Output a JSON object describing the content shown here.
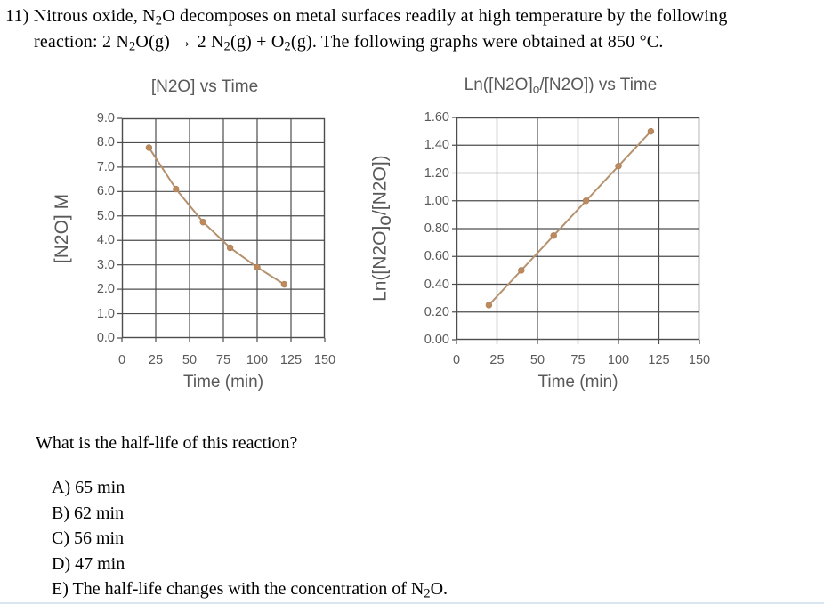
{
  "header": {
    "line1": [
      {
        "t": "11) Nitrous oxide, N"
      },
      {
        "t": "2",
        "sub": true
      },
      {
        "t": "O decomposes on metal surfaces readily at high temperature by the following"
      }
    ],
    "line2": [
      {
        "t": "reaction: 2 N"
      },
      {
        "t": "2",
        "sub": true
      },
      {
        "t": "O(g) →  2 N"
      },
      {
        "t": "2",
        "sub": true
      },
      {
        "t": "(g) + O"
      },
      {
        "t": "2",
        "sub": true
      },
      {
        "t": "(g). The following graphs were obtained at 850 °C."
      }
    ]
  },
  "chart_data": [
    {
      "type": "line",
      "title": "[N2O] vs Time",
      "title_rich": [
        {
          "t": "[N2O] vs Time"
        }
      ],
      "xlabel": "Time (min)",
      "ylabel": "[N2O] M",
      "ylabel_rich": [
        {
          "t": "[N2O] M"
        }
      ],
      "x": [
        20,
        40,
        60,
        80,
        100,
        120
      ],
      "y": [
        7.8,
        6.1,
        4.75,
        3.7,
        2.9,
        2.2
      ],
      "xlim": [
        0,
        150
      ],
      "ylim": [
        0,
        9
      ],
      "xticks": [
        0,
        25,
        50,
        75,
        100,
        125,
        150
      ],
      "ytick_labels": [
        "9.0",
        "8.0",
        "7.0",
        "6.0",
        "5.0",
        "4.0",
        "3.0",
        "2.0",
        "1.0",
        "0.0"
      ],
      "grid": true,
      "legend": "none",
      "marker_color": "#bd8a5e",
      "line_color": "#b5916e"
    },
    {
      "type": "line",
      "title": "Ln([N2O]o/[N2O]) vs Time",
      "title_rich": [
        {
          "t": "Ln([N2O]"
        },
        {
          "t": "o",
          "sub": true
        },
        {
          "t": "/[N2O]) vs Time"
        }
      ],
      "xlabel": "Time (min)",
      "ylabel": "Ln([N2O]o/[N2O])",
      "ylabel_rich": [
        {
          "t": "Ln([N2O]"
        },
        {
          "t": "o",
          "sub": true
        },
        {
          "t": "/[N2O])"
        }
      ],
      "x": [
        20,
        40,
        60,
        80,
        100,
        120
      ],
      "y": [
        0.25,
        0.5,
        0.75,
        1.0,
        1.25,
        1.5
      ],
      "xlim": [
        0,
        150
      ],
      "ylim": [
        0,
        1.6
      ],
      "xticks": [
        0,
        25,
        50,
        75,
        100,
        125,
        150
      ],
      "ytick_labels": [
        "1.60",
        "1.40",
        "1.20",
        "1.00",
        "0.80",
        "0.60",
        "0.40",
        "0.20",
        "0.00"
      ],
      "grid": true,
      "legend": "none",
      "marker_color": "#bd8a5e",
      "line_color": "#b5916e"
    }
  ],
  "question": {
    "prompt": "What is the half-life of this reaction?",
    "options": [
      [
        {
          "t": "A) 65 min"
        }
      ],
      [
        {
          "t": "B) 62 min"
        }
      ],
      [
        {
          "t": "C) 56 min"
        }
      ],
      [
        {
          "t": "D) 47 min"
        }
      ],
      [
        {
          "t": "E) The half-life changes with the concentration of N"
        },
        {
          "t": "2",
          "sub": true
        },
        {
          "t": "O."
        }
      ]
    ]
  },
  "colors": {
    "chart_text": "#595959",
    "grid": "#4d4d4d",
    "marker": "#bd8a5e",
    "line": "#b5916e",
    "bottom_strip": "#b9d1e8"
  }
}
